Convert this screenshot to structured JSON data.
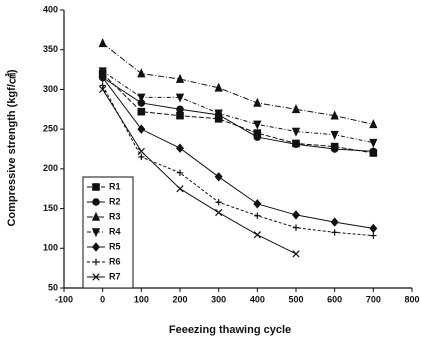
{
  "chart_data": {
    "type": "line",
    "x_label": "Feeezing thawing cycle",
    "y_label": "Compressive strength (kgf/㎠)",
    "x": [
      0,
      100,
      200,
      300,
      400,
      500,
      600,
      700
    ],
    "series": [
      {
        "name": "R1",
        "color": "#111111",
        "marker": "square",
        "values": [
          320,
          272,
          267,
          263,
          245,
          232,
          228,
          220
        ]
      },
      {
        "name": "R2",
        "color": "#111111",
        "marker": "circle",
        "values": [
          315,
          283,
          275,
          268,
          240,
          231,
          225,
          222
        ]
      },
      {
        "name": "R3",
        "color": "#111111",
        "marker": "triangle-up",
        "values": [
          358,
          320,
          313,
          302,
          283,
          275,
          267,
          256
        ]
      },
      {
        "name": "R4",
        "color": "#111111",
        "marker": "triangle-down",
        "values": [
          323,
          290,
          290,
          270,
          256,
          247,
          243,
          233
        ]
      },
      {
        "name": "R5",
        "color": "#111111",
        "marker": "diamond",
        "values": [
          315,
          250,
          226,
          190,
          156,
          142,
          133,
          125
        ]
      },
      {
        "name": "R6",
        "color": "#111111",
        "marker": "plus",
        "values": [
          305,
          215,
          195,
          158,
          141,
          126,
          120,
          116
        ]
      },
      {
        "name": "R7",
        "color": "#111111",
        "marker": "cross",
        "values": [
          300,
          222,
          175,
          145,
          117,
          93,
          null,
          null
        ]
      }
    ],
    "xlim": [
      -100,
      800
    ],
    "xticks": [
      -100,
      0,
      100,
      200,
      300,
      400,
      500,
      600,
      700,
      800
    ],
    "ylim": [
      50,
      400
    ],
    "yticks": [
      50,
      100,
      150,
      200,
      250,
      300,
      350,
      400
    ]
  }
}
